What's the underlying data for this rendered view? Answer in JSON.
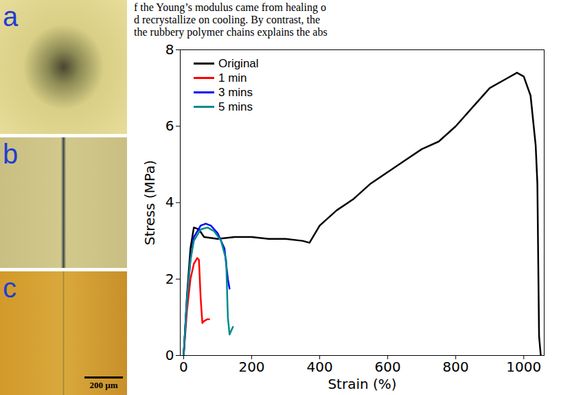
{
  "page_text": [
    "f the Young’s modulus came from healing o",
    "d recrystallize on cooling. By contrast, the",
    "the rubbery polymer chains explains the abs"
  ],
  "panels": [
    {
      "label": "a"
    },
    {
      "label": "b"
    },
    {
      "label": "c",
      "scale_bar": "200 µm"
    }
  ],
  "chart_data": {
    "type": "line",
    "x_label": "Strain (%)",
    "y_label": "Stress (MPa)",
    "xlim": [
      -10,
      1060
    ],
    "xticks": [
      0,
      200,
      400,
      600,
      800,
      1000
    ],
    "ylim": [
      0,
      8
    ],
    "yticks": [
      0,
      2,
      4,
      6,
      8
    ],
    "legend": "top-left",
    "series": [
      {
        "name": "Original",
        "color": "#000000",
        "x": [
          0,
          10,
          20,
          30,
          45,
          60,
          100,
          150,
          200,
          250,
          300,
          350,
          370,
          400,
          450,
          500,
          550,
          600,
          650,
          700,
          750,
          800,
          850,
          900,
          950,
          980,
          1000,
          1020,
          1035,
          1040,
          1045,
          1050
        ],
        "values": [
          0,
          1.6,
          2.8,
          3.35,
          3.3,
          3.1,
          3.05,
          3.1,
          3.1,
          3.05,
          3.05,
          3.0,
          2.95,
          3.4,
          3.8,
          4.1,
          4.5,
          4.8,
          5.1,
          5.4,
          5.6,
          6.0,
          6.5,
          7.0,
          7.25,
          7.4,
          7.3,
          6.8,
          5.5,
          4.5,
          0.5,
          0
        ]
      },
      {
        "name": "1 min",
        "color": "#ff0000",
        "x": [
          0,
          10,
          20,
          30,
          40,
          45,
          50,
          55,
          60,
          70,
          75
        ],
        "values": [
          0,
          1.2,
          2.0,
          2.4,
          2.55,
          2.5,
          1.5,
          0.85,
          0.9,
          0.95,
          0.95
        ]
      },
      {
        "name": "3 mins",
        "color": "#0000ff",
        "x": [
          0,
          10,
          20,
          30,
          50,
          65,
          80,
          100,
          120,
          130,
          135
        ],
        "values": [
          0,
          1.5,
          2.5,
          3.1,
          3.4,
          3.45,
          3.4,
          3.2,
          2.8,
          2.0,
          1.75
        ]
      },
      {
        "name": "5 mins",
        "color": "#008b8b",
        "x": [
          0,
          10,
          20,
          30,
          50,
          70,
          90,
          110,
          125,
          130,
          135,
          140,
          145
        ],
        "values": [
          0,
          1.5,
          2.5,
          3.0,
          3.3,
          3.35,
          3.25,
          3.0,
          2.5,
          1.0,
          0.55,
          0.65,
          0.75
        ]
      }
    ]
  }
}
